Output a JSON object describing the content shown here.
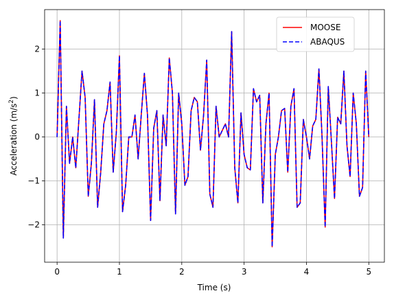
{
  "chart_data": {
    "type": "line",
    "title": "",
    "xlabel": "Time (s)",
    "ylabel_main": "Acceleration (m/s",
    "ylabel_sup": "2",
    "ylabel_close": ")",
    "xlim": [
      -0.2,
      5.25
    ],
    "ylim": [
      -2.85,
      2.9
    ],
    "xticks": [
      0,
      1,
      2,
      3,
      4,
      5
    ],
    "yticks": [
      -2,
      -1,
      0,
      1,
      2
    ],
    "grid": true,
    "legend_position": "upper-right",
    "x": [
      0.0,
      0.05,
      0.1,
      0.15,
      0.2,
      0.25,
      0.3,
      0.35,
      0.4,
      0.45,
      0.5,
      0.55,
      0.6,
      0.65,
      0.7,
      0.75,
      0.8,
      0.85,
      0.9,
      0.95,
      1.0,
      1.05,
      1.1,
      1.15,
      1.2,
      1.25,
      1.3,
      1.35,
      1.4,
      1.45,
      1.5,
      1.55,
      1.6,
      1.65,
      1.7,
      1.75,
      1.8,
      1.85,
      1.9,
      1.95,
      2.0,
      2.05,
      2.1,
      2.15,
      2.2,
      2.25,
      2.3,
      2.35,
      2.4,
      2.45,
      2.5,
      2.55,
      2.6,
      2.65,
      2.7,
      2.75,
      2.8,
      2.85,
      2.9,
      2.95,
      3.0,
      3.05,
      3.1,
      3.15,
      3.2,
      3.25,
      3.3,
      3.35,
      3.4,
      3.45,
      3.5,
      3.55,
      3.6,
      3.65,
      3.7,
      3.75,
      3.8,
      3.85,
      3.9,
      3.95,
      4.0,
      4.05,
      4.1,
      4.15,
      4.2,
      4.25,
      4.3,
      4.35,
      4.4,
      4.45,
      4.5,
      4.55,
      4.6,
      4.65,
      4.7,
      4.75,
      4.8,
      4.85,
      4.9,
      4.95,
      5.0
    ],
    "series": [
      {
        "name": "MOOSE",
        "color": "#ff0000",
        "dash": "solid",
        "values": [
          0.0,
          2.65,
          -2.3,
          0.7,
          -0.6,
          0.0,
          -0.7,
          0.4,
          1.5,
          0.9,
          -1.35,
          -0.6,
          0.85,
          -1.6,
          -0.8,
          0.3,
          0.6,
          1.25,
          -0.8,
          0.1,
          1.85,
          -1.7,
          -1.1,
          0.0,
          0.0,
          0.5,
          -0.5,
          0.5,
          1.45,
          0.5,
          -1.9,
          0.2,
          0.6,
          -1.45,
          0.5,
          -0.2,
          1.8,
          1.0,
          -1.75,
          1.0,
          0.3,
          -1.1,
          -0.9,
          0.6,
          0.9,
          0.8,
          -0.3,
          0.5,
          1.75,
          -1.3,
          -1.6,
          0.7,
          0.0,
          0.15,
          0.3,
          0.0,
          2.4,
          -0.7,
          -1.5,
          0.55,
          -0.4,
          -0.7,
          -0.75,
          1.1,
          0.8,
          0.95,
          -1.5,
          0.3,
          1.0,
          -2.5,
          -0.4,
          0.0,
          0.6,
          0.65,
          -0.8,
          0.7,
          1.1,
          -1.6,
          -1.5,
          0.4,
          0.0,
          -0.5,
          0.25,
          0.4,
          1.55,
          0.0,
          -2.05,
          1.15,
          -0.1,
          -1.4,
          0.45,
          0.3,
          1.5,
          -0.2,
          -0.9,
          1.0,
          0.3,
          -1.35,
          -1.15,
          1.5,
          0.0
        ]
      },
      {
        "name": "ABAQUS",
        "color": "#0000ff",
        "dash": "dashed",
        "values": [
          0.0,
          2.65,
          -2.3,
          0.7,
          -0.6,
          0.0,
          -0.7,
          0.4,
          1.5,
          0.9,
          -1.35,
          -0.6,
          0.85,
          -1.6,
          -0.8,
          0.3,
          0.6,
          1.25,
          -0.8,
          0.1,
          1.85,
          -1.7,
          -1.1,
          0.0,
          0.0,
          0.5,
          -0.5,
          0.5,
          1.45,
          0.5,
          -1.9,
          0.2,
          0.6,
          -1.45,
          0.5,
          -0.2,
          1.8,
          1.0,
          -1.75,
          1.0,
          0.3,
          -1.1,
          -0.9,
          0.6,
          0.9,
          0.8,
          -0.3,
          0.5,
          1.75,
          -1.3,
          -1.6,
          0.7,
          0.0,
          0.15,
          0.3,
          0.0,
          2.4,
          -0.7,
          -1.5,
          0.55,
          -0.4,
          -0.7,
          -0.75,
          1.1,
          0.8,
          0.95,
          -1.5,
          0.3,
          1.0,
          -2.5,
          -0.4,
          0.0,
          0.6,
          0.65,
          -0.8,
          0.7,
          1.1,
          -1.6,
          -1.5,
          0.4,
          0.0,
          -0.5,
          0.25,
          0.4,
          1.55,
          0.0,
          -2.05,
          1.15,
          -0.1,
          -1.4,
          0.45,
          0.3,
          1.5,
          -0.2,
          -0.9,
          1.0,
          0.3,
          -1.35,
          -1.15,
          1.5,
          0.0
        ]
      }
    ]
  }
}
